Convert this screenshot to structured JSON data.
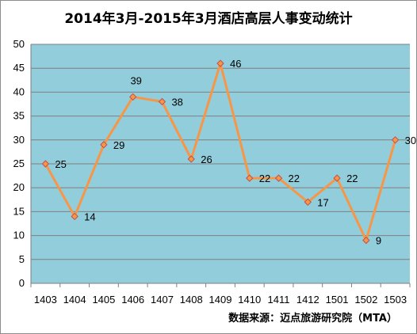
{
  "chart_data": {
    "type": "line",
    "title": "2014年3月-2015年3月酒店高层人事变动统计",
    "source": "数据来源：迈点旅游研究院（MTA）",
    "categories": [
      "1403",
      "1404",
      "1405",
      "1406",
      "1407",
      "1408",
      "1409",
      "1410",
      "1411",
      "1412",
      "1501",
      "1502",
      "1503"
    ],
    "values": [
      25,
      14,
      29,
      39,
      38,
      26,
      46,
      22,
      22,
      17,
      22,
      9,
      30
    ],
    "ylim": [
      0,
      50
    ],
    "yticks": [
      "0",
      "5",
      "10",
      "15",
      "20",
      "25",
      "30",
      "35",
      "40",
      "45",
      "50"
    ],
    "grid": true,
    "legend": "none",
    "xlabel": "",
    "ylabel": "",
    "colors": {
      "plot_background": "#92CDDC",
      "line": "#F79646",
      "marker_fill": "#F79646",
      "marker_stroke": "#C0504D",
      "gridline": "#7f7f7f"
    }
  }
}
